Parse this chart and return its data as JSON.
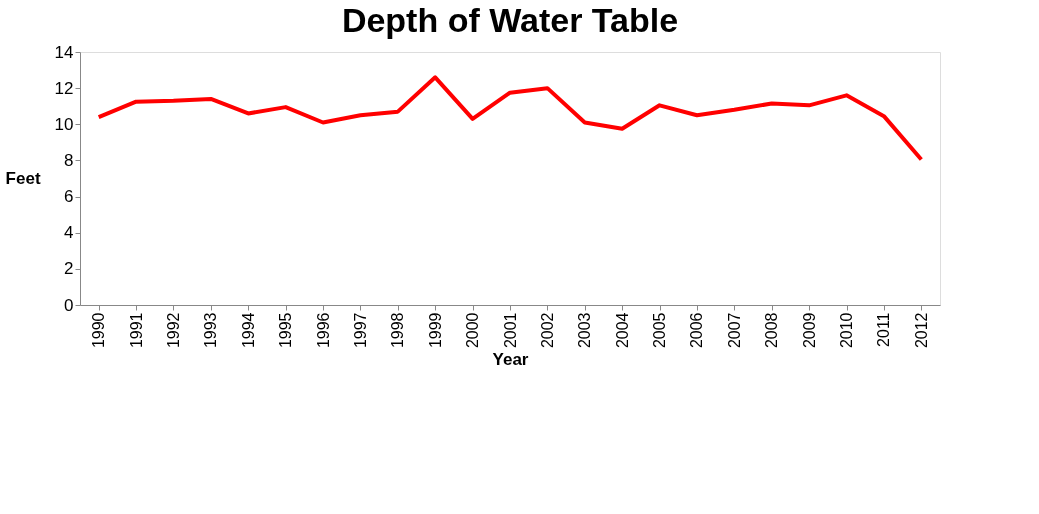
{
  "chart_data": {
    "type": "line",
    "title": "Depth of Water Table",
    "xlabel": "Year",
    "ylabel": "Feet",
    "categories": [
      "1990",
      "1991",
      "1992",
      "1993",
      "1994",
      "1995",
      "1996",
      "1997",
      "1998",
      "1999",
      "2000",
      "2001",
      "2002",
      "2003",
      "2004",
      "2005",
      "2006",
      "2007",
      "2008",
      "2009",
      "2010",
      "2011",
      "2012"
    ],
    "series": [
      {
        "color": "#ff0000",
        "values": [
          10.4,
          11.25,
          11.3,
          11.4,
          10.6,
          10.95,
          10.1,
          10.5,
          10.7,
          12.6,
          10.3,
          11.75,
          12.0,
          10.1,
          9.75,
          11.05,
          10.5,
          10.8,
          11.15,
          11.05,
          11.6,
          10.45,
          8.05
        ]
      }
    ],
    "ylim": [
      0,
      14
    ],
    "yticks": [
      0,
      2,
      4,
      6,
      8,
      10,
      12,
      14
    ],
    "grid": false,
    "legend": false,
    "marker": "none",
    "line_style": "solid"
  }
}
